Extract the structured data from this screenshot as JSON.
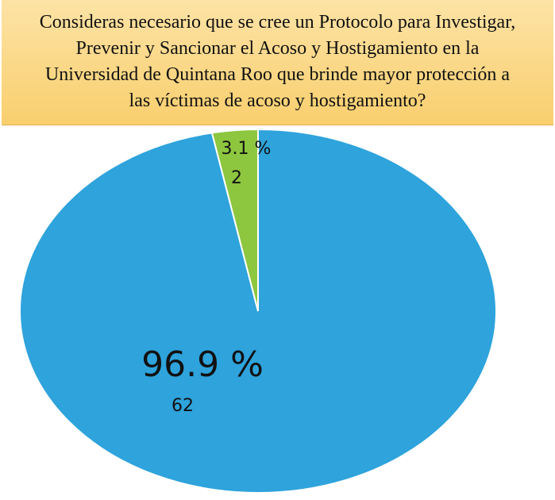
{
  "chart_data": {
    "type": "pie",
    "title": "Consideras necesario que se cree un Protocolo para Investigar, Prevenir y Sancionar el Acoso y Hostigamiento en la Universidad de Quintana Roo que brinde mayor protección a las víctimas de acoso y hostigamiento?",
    "values": [
      96.9,
      3.1
    ],
    "value_labels": [
      "96.9 %",
      "3.1 %"
    ],
    "counts": [
      62,
      2
    ],
    "colors": [
      "#2ea3dc",
      "#8dc63f"
    ]
  }
}
